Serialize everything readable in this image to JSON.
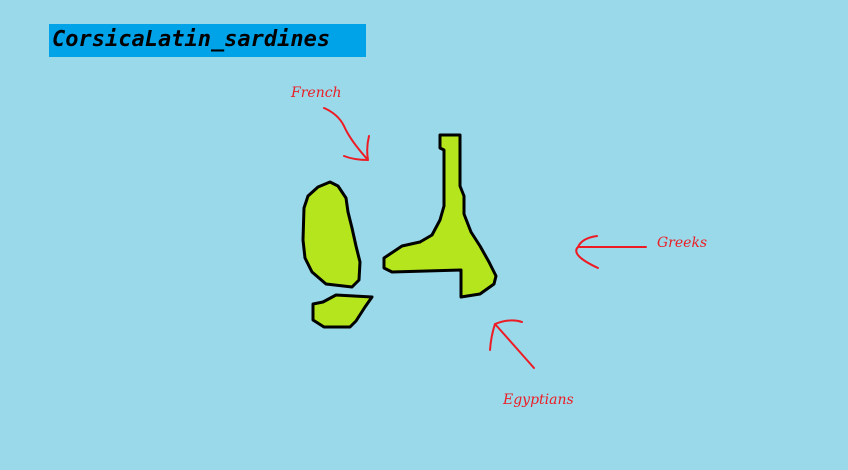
{
  "title": "CorsicaLatin_sardines",
  "labels": {
    "french": "French",
    "greeks": "Greeks",
    "egyptians": "Egyptians"
  },
  "colors": {
    "sea": "#99d9ea",
    "title_bg": "#00a2e8",
    "land": "#b5e61d",
    "arrow": "#ed1c24",
    "outline": "#000000"
  }
}
